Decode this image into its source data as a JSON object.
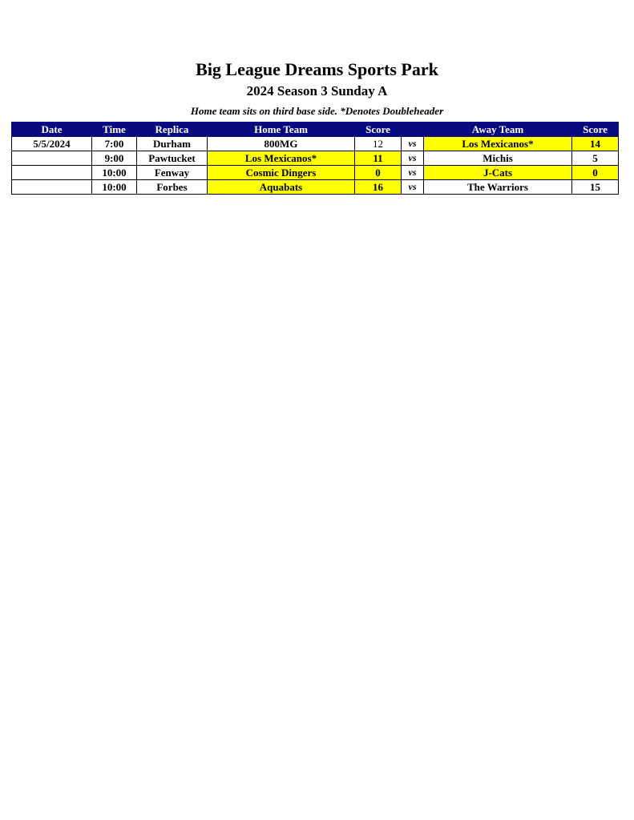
{
  "title": "Big League Dreams Sports Park",
  "subtitle": "2024 Season 3 Sunday A",
  "note": "Home team sits on third base side.  *Denotes Doubleheader",
  "colors": {
    "header_bg": "#0a0a80",
    "highlight": "#ffff00"
  },
  "columns": [
    "Date",
    "Time",
    "Replica",
    "Home Team",
    "Score",
    "",
    "Away Team",
    "Score"
  ],
  "rows": [
    {
      "date": "5/5/2024",
      "time": "7:00",
      "replica": "Durham",
      "home": "800MG",
      "home_score": "12",
      "vs": "vs",
      "away": "Los Mexicanos*",
      "away_score": "14",
      "home_highlight": false,
      "away_highlight": true
    },
    {
      "date": "",
      "time": "9:00",
      "replica": "Pawtucket",
      "home": "Los Mexicanos*",
      "home_score": "11",
      "vs": "vs",
      "away": "Michis",
      "away_score": "5",
      "home_highlight": true,
      "away_highlight": false
    },
    {
      "date": "",
      "time": "10:00",
      "replica": "Fenway",
      "home": "Cosmic Dingers",
      "home_score": "0",
      "vs": "vs",
      "away": "J-Cats",
      "away_score": "0",
      "home_highlight": true,
      "away_highlight": true
    },
    {
      "date": "",
      "time": "10:00",
      "replica": "Forbes",
      "home": "Aquabats",
      "home_score": "16",
      "vs": "vs",
      "away": "The Warriors",
      "away_score": "15",
      "home_highlight": true,
      "away_highlight": false
    }
  ]
}
